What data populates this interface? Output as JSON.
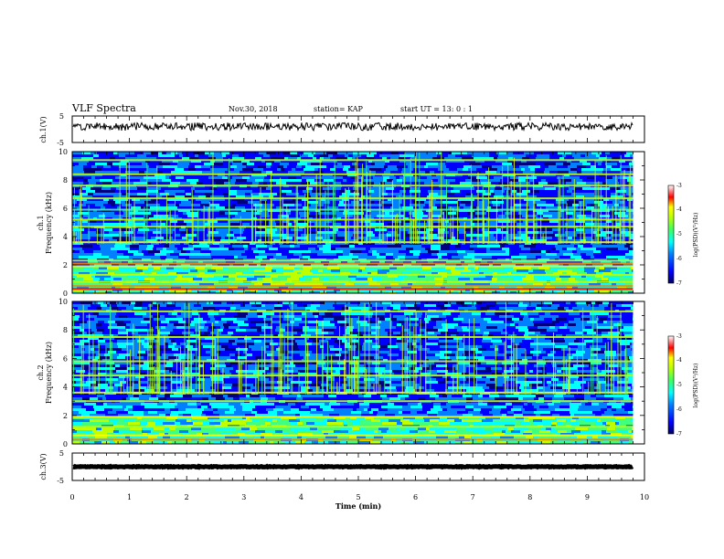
{
  "header": {
    "title": "VLF Spectra",
    "date": "Nov.30, 2018",
    "station": "station= KAP",
    "start": "start  UT =   13: 0  : 1"
  },
  "colors": {
    "trace": "#000000",
    "colormap": [
      "#00007f",
      "#0000ff",
      "#0080ff",
      "#00ffff",
      "#40ff80",
      "#c0ff00",
      "#ffff00",
      "#ff8000",
      "#ff0000",
      "#ffffff"
    ]
  },
  "chart_data": [
    {
      "type": "line",
      "panel": "ch1-waveform",
      "ylabel": "ch.1(V)",
      "xlim": [
        0,
        10
      ],
      "ylim": [
        -5,
        5
      ],
      "yticks": [
        "5",
        "-5"
      ],
      "data_end_min": 9.8,
      "trace_level_v": 1.0,
      "trace_amplitude_v": 1.5
    },
    {
      "type": "heatmap",
      "panel": "ch1-spectrogram",
      "ylabel": "ch.1\nFrequency (kHz)",
      "ylabel_line1": "ch.1",
      "ylabel_line2": "Frequency  (kHz)",
      "xlim": [
        0,
        10
      ],
      "ylim": [
        0,
        10
      ],
      "yticks": [
        "0",
        "2",
        "4",
        "6",
        "8",
        "10"
      ],
      "data_end_min": 9.8,
      "colorbar": {
        "label": "log(PSD)(V²/Hz)",
        "range": [
          -7,
          -3
        ],
        "ticks": [
          "-3",
          "-4",
          "-5",
          "-6",
          "-7"
        ]
      },
      "bands_khz": [
        {
          "f": 0.3,
          "level": -3.6
        },
        {
          "f": 0.5,
          "level": -3.9
        },
        {
          "f": 0.8,
          "level": -4.6
        },
        {
          "f": 1.3,
          "level": -4.9
        },
        {
          "f": 1.9,
          "level": -4.5
        },
        {
          "f": 2.1,
          "level": -3.8
        },
        {
          "f": 2.3,
          "level": -4.8
        },
        {
          "f": 3.6,
          "level": -4.2
        },
        {
          "f": 4.7,
          "level": -5.0
        },
        {
          "f": 5.2,
          "level": -4.6
        },
        {
          "f": 5.9,
          "level": -5.1
        },
        {
          "f": 6.7,
          "level": -4.7
        },
        {
          "f": 7.6,
          "level": -5.0
        },
        {
          "f": 8.4,
          "level": -4.9
        },
        {
          "f": 9.4,
          "level": -5.0
        }
      ]
    },
    {
      "type": "heatmap",
      "panel": "ch2-spectrogram",
      "ylabel": "ch.2\nFrequency (kHz)",
      "ylabel_line1": "ch.2",
      "ylabel_line2": "Frequency  (kHz)",
      "xlim": [
        0,
        10
      ],
      "ylim": [
        0,
        10
      ],
      "yticks": [
        "0",
        "2",
        "4",
        "6",
        "8",
        "10"
      ],
      "data_end_min": 9.8,
      "colorbar": {
        "label": "log(PSD)(V²/Hz)",
        "range": [
          -7,
          -3
        ],
        "ticks": [
          "-3",
          "-4",
          "-5",
          "-6",
          "-7"
        ]
      },
      "bands_khz": [
        {
          "f": 0.3,
          "level": -3.7
        },
        {
          "f": 0.6,
          "level": -4.3
        },
        {
          "f": 1.2,
          "level": -5.0
        },
        {
          "f": 1.9,
          "level": -4.2
        },
        {
          "f": 3.0,
          "level": -4.6
        },
        {
          "f": 3.6,
          "level": -4.3
        },
        {
          "f": 4.8,
          "level": -4.9
        },
        {
          "f": 5.8,
          "level": -5.0
        },
        {
          "f": 7.5,
          "level": -5.0
        },
        {
          "f": 9.3,
          "level": -5.0
        }
      ]
    },
    {
      "type": "line",
      "panel": "ch3-waveform",
      "ylabel": "ch.3(V)",
      "xlim": [
        0,
        10
      ],
      "ylim": [
        -5,
        5
      ],
      "yticks": [
        "5",
        "-5"
      ],
      "data_end_min": 9.8,
      "trace_level_v": 0.0,
      "trace_amplitude_v": 0.15
    }
  ],
  "xaxis": {
    "label": "Time (min)",
    "ticks": [
      "0",
      "1",
      "2",
      "3",
      "4",
      "5",
      "6",
      "7",
      "8",
      "9",
      "10"
    ]
  }
}
